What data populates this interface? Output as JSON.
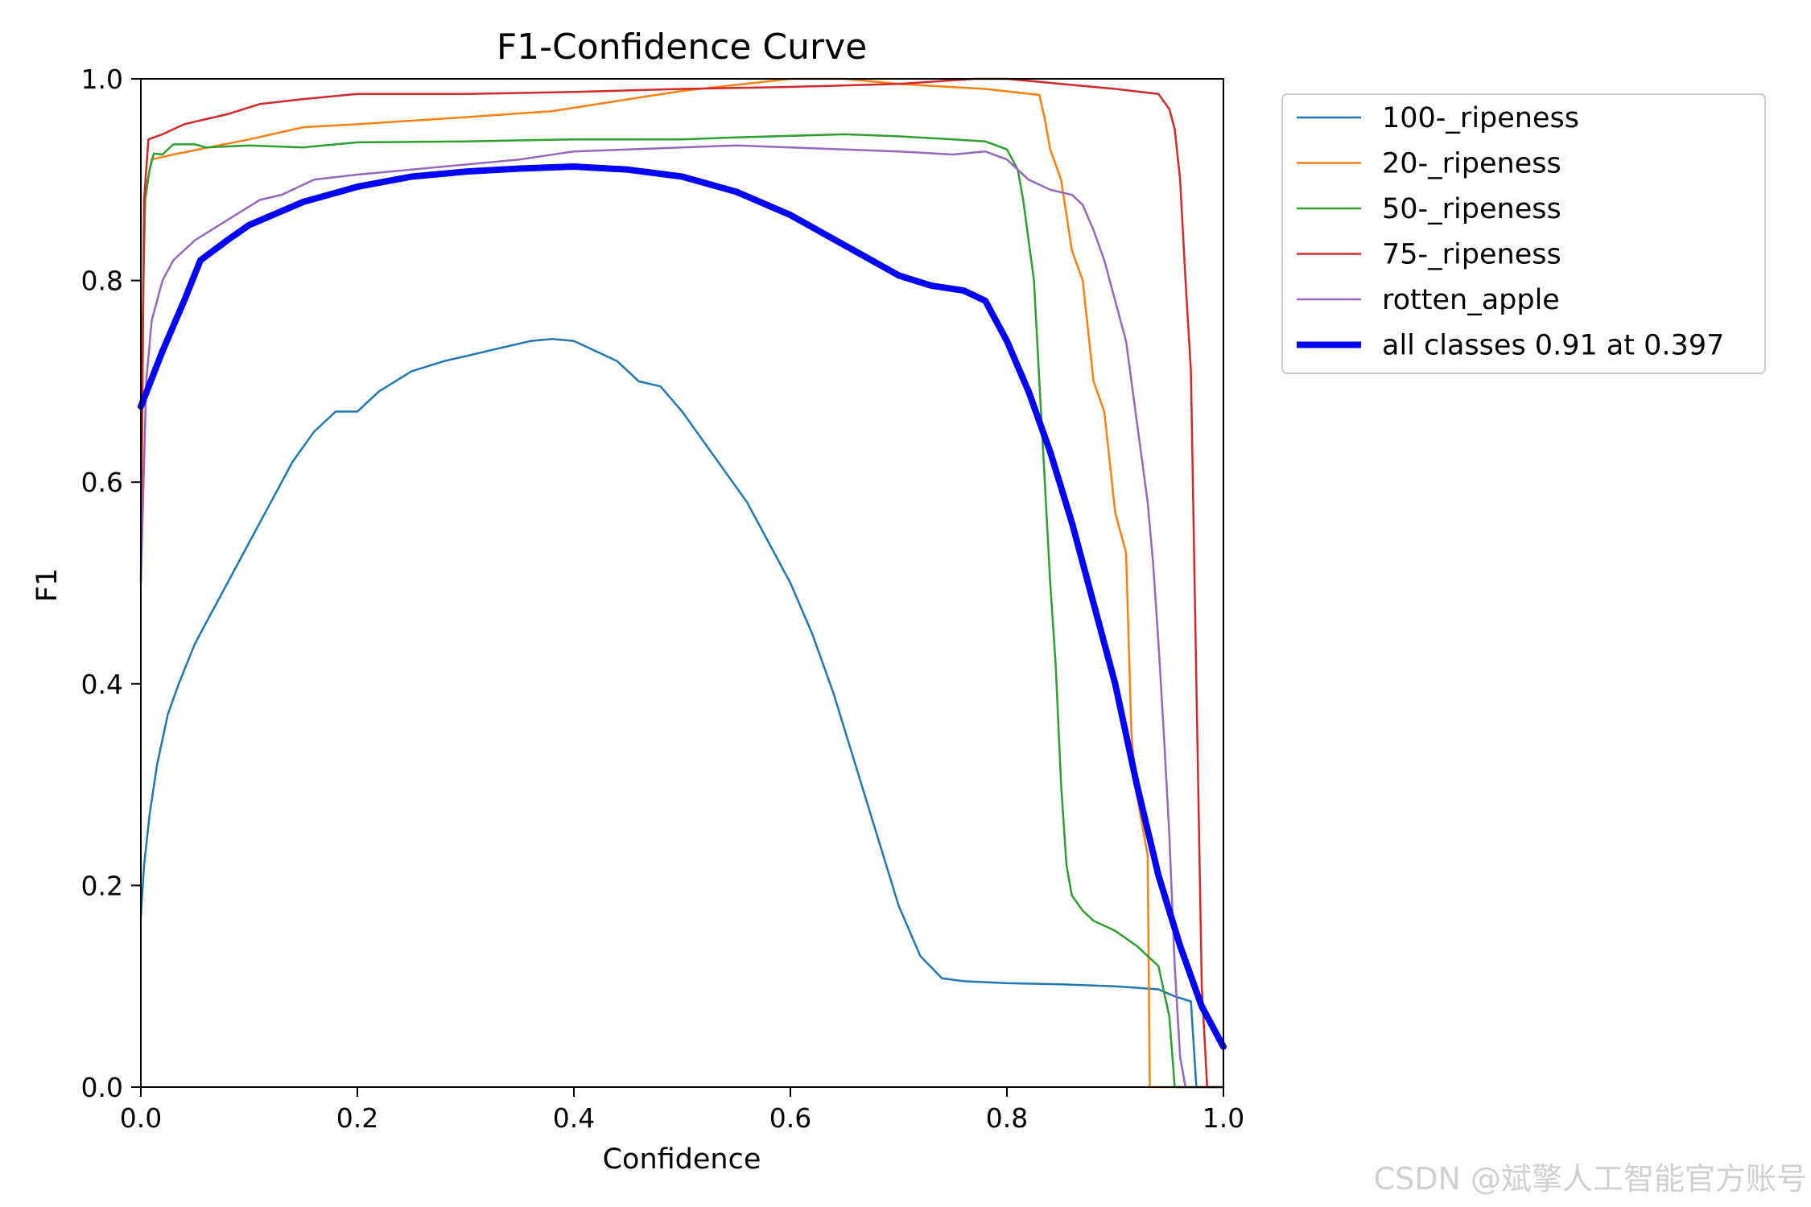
{
  "chart_data": {
    "type": "line",
    "title": "F1-Confidence Curve",
    "xlabel": "Confidence",
    "ylabel": "F1",
    "xlim": [
      0.0,
      1.0
    ],
    "ylim": [
      0.0,
      1.0
    ],
    "xticks": [
      "0.0",
      "0.2",
      "0.4",
      "0.6",
      "0.8",
      "1.0"
    ],
    "yticks": [
      "0.0",
      "0.2",
      "0.4",
      "0.6",
      "0.8",
      "1.0"
    ],
    "grid": false,
    "legend_position": "outside-top-right",
    "series": [
      {
        "name": "100-_ripeness",
        "color": "#1f77b4",
        "bold": false,
        "points": [
          [
            0.0,
            0.17
          ],
          [
            0.003,
            0.22
          ],
          [
            0.008,
            0.27
          ],
          [
            0.015,
            0.32
          ],
          [
            0.025,
            0.37
          ],
          [
            0.035,
            0.4
          ],
          [
            0.05,
            0.44
          ],
          [
            0.065,
            0.47
          ],
          [
            0.08,
            0.5
          ],
          [
            0.1,
            0.54
          ],
          [
            0.12,
            0.58
          ],
          [
            0.14,
            0.62
          ],
          [
            0.16,
            0.65
          ],
          [
            0.18,
            0.67
          ],
          [
            0.2,
            0.67
          ],
          [
            0.22,
            0.69
          ],
          [
            0.25,
            0.71
          ],
          [
            0.28,
            0.72
          ],
          [
            0.3,
            0.725
          ],
          [
            0.32,
            0.73
          ],
          [
            0.34,
            0.735
          ],
          [
            0.36,
            0.74
          ],
          [
            0.38,
            0.742
          ],
          [
            0.4,
            0.74
          ],
          [
            0.42,
            0.73
          ],
          [
            0.44,
            0.72
          ],
          [
            0.46,
            0.7
          ],
          [
            0.48,
            0.695
          ],
          [
            0.5,
            0.67
          ],
          [
            0.52,
            0.64
          ],
          [
            0.54,
            0.61
          ],
          [
            0.56,
            0.58
          ],
          [
            0.58,
            0.54
          ],
          [
            0.6,
            0.5
          ],
          [
            0.62,
            0.45
          ],
          [
            0.64,
            0.39
          ],
          [
            0.66,
            0.32
          ],
          [
            0.68,
            0.25
          ],
          [
            0.7,
            0.18
          ],
          [
            0.72,
            0.13
          ],
          [
            0.74,
            0.108
          ],
          [
            0.76,
            0.105
          ],
          [
            0.8,
            0.103
          ],
          [
            0.85,
            0.102
          ],
          [
            0.9,
            0.1
          ],
          [
            0.94,
            0.097
          ],
          [
            0.955,
            0.09
          ],
          [
            0.97,
            0.085
          ],
          [
            0.975,
            0.0
          ],
          [
            1.0,
            0.0
          ]
        ]
      },
      {
        "name": "20-_ripeness",
        "color": "#ff7f0e",
        "bold": false,
        "points": [
          [
            0.0,
            0.52
          ],
          [
            0.003,
            0.88
          ],
          [
            0.01,
            0.92
          ],
          [
            0.03,
            0.925
          ],
          [
            0.1,
            0.94
          ],
          [
            0.15,
            0.952
          ],
          [
            0.2,
            0.955
          ],
          [
            0.3,
            0.962
          ],
          [
            0.38,
            0.968
          ],
          [
            0.5,
            0.988
          ],
          [
            0.6,
            1.0
          ],
          [
            0.65,
            1.0
          ],
          [
            0.7,
            0.995
          ],
          [
            0.78,
            0.99
          ],
          [
            0.83,
            0.984
          ],
          [
            0.835,
            0.96
          ],
          [
            0.84,
            0.93
          ],
          [
            0.85,
            0.9
          ],
          [
            0.86,
            0.83
          ],
          [
            0.87,
            0.8
          ],
          [
            0.88,
            0.7
          ],
          [
            0.89,
            0.67
          ],
          [
            0.9,
            0.57
          ],
          [
            0.91,
            0.53
          ],
          [
            0.915,
            0.35
          ],
          [
            0.92,
            0.29
          ],
          [
            0.93,
            0.23
          ],
          [
            0.932,
            0.0
          ],
          [
            1.0,
            0.0
          ]
        ]
      },
      {
        "name": "50-_ripeness",
        "color": "#2ca02c",
        "bold": false,
        "points": [
          [
            0.0,
            0.68
          ],
          [
            0.004,
            0.88
          ],
          [
            0.008,
            0.91
          ],
          [
            0.012,
            0.926
          ],
          [
            0.02,
            0.925
          ],
          [
            0.03,
            0.935
          ],
          [
            0.05,
            0.935
          ],
          [
            0.06,
            0.932
          ],
          [
            0.1,
            0.934
          ],
          [
            0.15,
            0.932
          ],
          [
            0.2,
            0.937
          ],
          [
            0.3,
            0.938
          ],
          [
            0.4,
            0.94
          ],
          [
            0.5,
            0.94
          ],
          [
            0.55,
            0.942
          ],
          [
            0.65,
            0.945
          ],
          [
            0.7,
            0.943
          ],
          [
            0.75,
            0.94
          ],
          [
            0.78,
            0.938
          ],
          [
            0.8,
            0.93
          ],
          [
            0.81,
            0.91
          ],
          [
            0.815,
            0.88
          ],
          [
            0.82,
            0.84
          ],
          [
            0.825,
            0.8
          ],
          [
            0.83,
            0.7
          ],
          [
            0.835,
            0.6
          ],
          [
            0.84,
            0.5
          ],
          [
            0.845,
            0.42
          ],
          [
            0.85,
            0.3
          ],
          [
            0.855,
            0.22
          ],
          [
            0.86,
            0.19
          ],
          [
            0.87,
            0.175
          ],
          [
            0.88,
            0.165
          ],
          [
            0.9,
            0.155
          ],
          [
            0.92,
            0.14
          ],
          [
            0.94,
            0.12
          ],
          [
            0.95,
            0.07
          ],
          [
            0.955,
            0.0
          ],
          [
            1.0,
            0.0
          ]
        ]
      },
      {
        "name": "75-_ripeness",
        "color": "#d62728",
        "bold": false,
        "points": [
          [
            0.0,
            0.5
          ],
          [
            0.003,
            0.88
          ],
          [
            0.007,
            0.94
          ],
          [
            0.02,
            0.945
          ],
          [
            0.04,
            0.955
          ],
          [
            0.06,
            0.96
          ],
          [
            0.08,
            0.965
          ],
          [
            0.11,
            0.975
          ],
          [
            0.15,
            0.98
          ],
          [
            0.2,
            0.985
          ],
          [
            0.3,
            0.985
          ],
          [
            0.4,
            0.987
          ],
          [
            0.5,
            0.99
          ],
          [
            0.6,
            0.992
          ],
          [
            0.7,
            0.995
          ],
          [
            0.77,
            1.0
          ],
          [
            0.8,
            1.0
          ],
          [
            0.85,
            0.995
          ],
          [
            0.9,
            0.99
          ],
          [
            0.94,
            0.985
          ],
          [
            0.95,
            0.97
          ],
          [
            0.955,
            0.95
          ],
          [
            0.96,
            0.9
          ],
          [
            0.965,
            0.8
          ],
          [
            0.97,
            0.71
          ],
          [
            0.975,
            0.4
          ],
          [
            0.98,
            0.1
          ],
          [
            0.985,
            0.0
          ],
          [
            1.0,
            0.0
          ]
        ]
      },
      {
        "name": "rotten_apple",
        "color": "#9467bd",
        "bold": false,
        "points": [
          [
            0.0,
            0.5
          ],
          [
            0.005,
            0.7
          ],
          [
            0.01,
            0.76
          ],
          [
            0.02,
            0.8
          ],
          [
            0.03,
            0.82
          ],
          [
            0.05,
            0.84
          ],
          [
            0.08,
            0.86
          ],
          [
            0.11,
            0.88
          ],
          [
            0.13,
            0.885
          ],
          [
            0.16,
            0.9
          ],
          [
            0.2,
            0.905
          ],
          [
            0.25,
            0.91
          ],
          [
            0.3,
            0.915
          ],
          [
            0.35,
            0.92
          ],
          [
            0.4,
            0.928
          ],
          [
            0.45,
            0.93
          ],
          [
            0.5,
            0.932
          ],
          [
            0.55,
            0.934
          ],
          [
            0.6,
            0.932
          ],
          [
            0.65,
            0.93
          ],
          [
            0.7,
            0.928
          ],
          [
            0.75,
            0.925
          ],
          [
            0.78,
            0.928
          ],
          [
            0.8,
            0.92
          ],
          [
            0.82,
            0.9
          ],
          [
            0.84,
            0.89
          ],
          [
            0.86,
            0.885
          ],
          [
            0.87,
            0.875
          ],
          [
            0.88,
            0.85
          ],
          [
            0.89,
            0.82
          ],
          [
            0.9,
            0.78
          ],
          [
            0.91,
            0.74
          ],
          [
            0.92,
            0.66
          ],
          [
            0.93,
            0.58
          ],
          [
            0.935,
            0.52
          ],
          [
            0.94,
            0.44
          ],
          [
            0.945,
            0.35
          ],
          [
            0.95,
            0.25
          ],
          [
            0.955,
            0.12
          ],
          [
            0.96,
            0.03
          ],
          [
            0.965,
            0.0
          ],
          [
            1.0,
            0.0
          ]
        ]
      },
      {
        "name": "all classes 0.91 at 0.397",
        "color": "#0000ff",
        "bold": true,
        "points": [
          [
            0.0,
            0.675
          ],
          [
            0.02,
            0.73
          ],
          [
            0.04,
            0.78
          ],
          [
            0.055,
            0.82
          ],
          [
            0.08,
            0.84
          ],
          [
            0.1,
            0.855
          ],
          [
            0.15,
            0.878
          ],
          [
            0.2,
            0.893
          ],
          [
            0.25,
            0.903
          ],
          [
            0.3,
            0.908
          ],
          [
            0.35,
            0.911
          ],
          [
            0.4,
            0.913
          ],
          [
            0.45,
            0.91
          ],
          [
            0.5,
            0.903
          ],
          [
            0.55,
            0.888
          ],
          [
            0.6,
            0.865
          ],
          [
            0.65,
            0.835
          ],
          [
            0.7,
            0.805
          ],
          [
            0.73,
            0.795
          ],
          [
            0.76,
            0.79
          ],
          [
            0.78,
            0.78
          ],
          [
            0.8,
            0.74
          ],
          [
            0.82,
            0.69
          ],
          [
            0.84,
            0.63
          ],
          [
            0.86,
            0.56
          ],
          [
            0.88,
            0.48
          ],
          [
            0.9,
            0.4
          ],
          [
            0.92,
            0.3
          ],
          [
            0.94,
            0.21
          ],
          [
            0.96,
            0.14
          ],
          [
            0.98,
            0.08
          ],
          [
            1.0,
            0.04
          ]
        ]
      }
    ]
  },
  "watermark": "CSDN @斌擎人工智能官方账号"
}
